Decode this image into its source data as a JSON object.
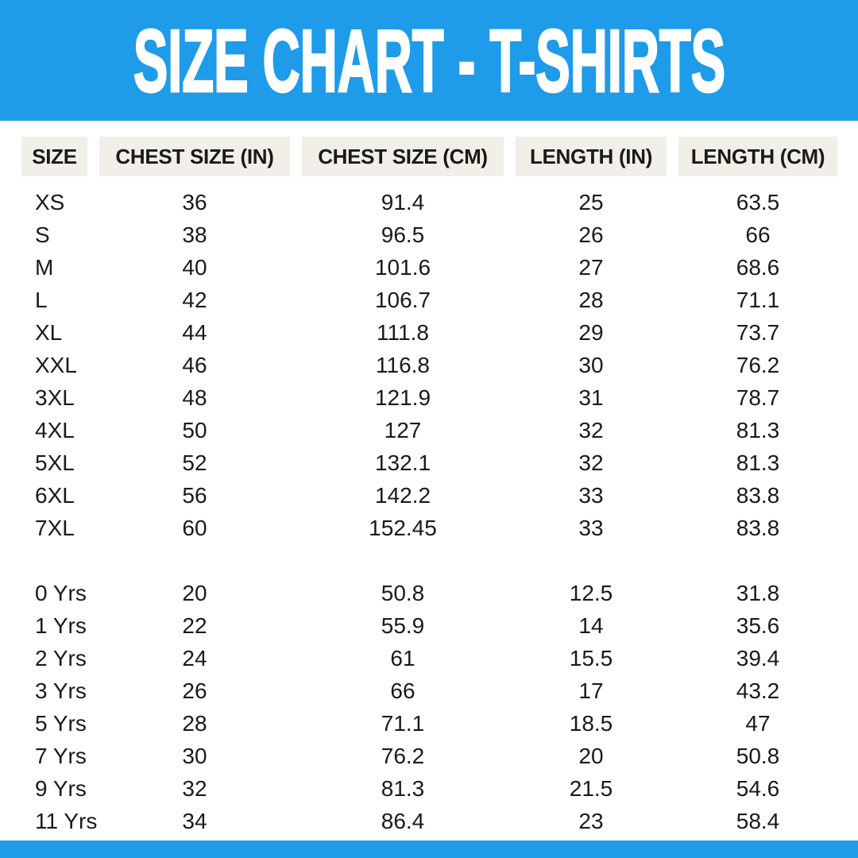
{
  "banner": {
    "title": "SIZE CHART - T-SHIRTS"
  },
  "colors": {
    "banner_blue": "#1E9BE9",
    "header_cell_bg": "#F1EFE7",
    "text_dark": "#1A1A1A",
    "page_bg": "#FFFFFF"
  },
  "chart_data": {
    "type": "table",
    "title": "SIZE CHART - T-SHIRTS",
    "columns": [
      "SIZE",
      "CHEST SIZE (IN)",
      "CHEST SIZE (CM)",
      "LENGTH (IN)",
      "LENGTH (CM)"
    ],
    "sections": [
      {
        "name": "adult-sizes",
        "rows": [
          [
            "XS",
            "36",
            "91.4",
            "25",
            "63.5"
          ],
          [
            "S",
            "38",
            "96.5",
            "26",
            "66"
          ],
          [
            "M",
            "40",
            "101.6",
            "27",
            "68.6"
          ],
          [
            "L",
            "42",
            "106.7",
            "28",
            "71.1"
          ],
          [
            "XL",
            "44",
            "111.8",
            "29",
            "73.7"
          ],
          [
            "XXL",
            "46",
            "116.8",
            "30",
            "76.2"
          ],
          [
            "3XL",
            "48",
            "121.9",
            "31",
            "78.7"
          ],
          [
            "4XL",
            "50",
            "127",
            "32",
            "81.3"
          ],
          [
            "5XL",
            "52",
            "132.1",
            "32",
            "81.3"
          ],
          [
            "6XL",
            "56",
            "142.2",
            "33",
            "83.8"
          ],
          [
            "7XL",
            "60",
            "152.45",
            "33",
            "83.8"
          ]
        ]
      },
      {
        "name": "kids-sizes",
        "rows": [
          [
            "0 Yrs",
            "20",
            "50.8",
            "12.5",
            "31.8"
          ],
          [
            "1 Yrs",
            "22",
            "55.9",
            "14",
            "35.6"
          ],
          [
            "2 Yrs",
            "24",
            "61",
            "15.5",
            "39.4"
          ],
          [
            "3 Yrs",
            "26",
            "66",
            "17",
            "43.2"
          ],
          [
            "5 Yrs",
            "28",
            "71.1",
            "18.5",
            "47"
          ],
          [
            "7 Yrs",
            "30",
            "76.2",
            "20",
            "50.8"
          ],
          [
            "9 Yrs",
            "32",
            "81.3",
            "21.5",
            "54.6"
          ],
          [
            "11 Yrs",
            "34",
            "86.4",
            "23",
            "58.4"
          ]
        ]
      }
    ]
  }
}
